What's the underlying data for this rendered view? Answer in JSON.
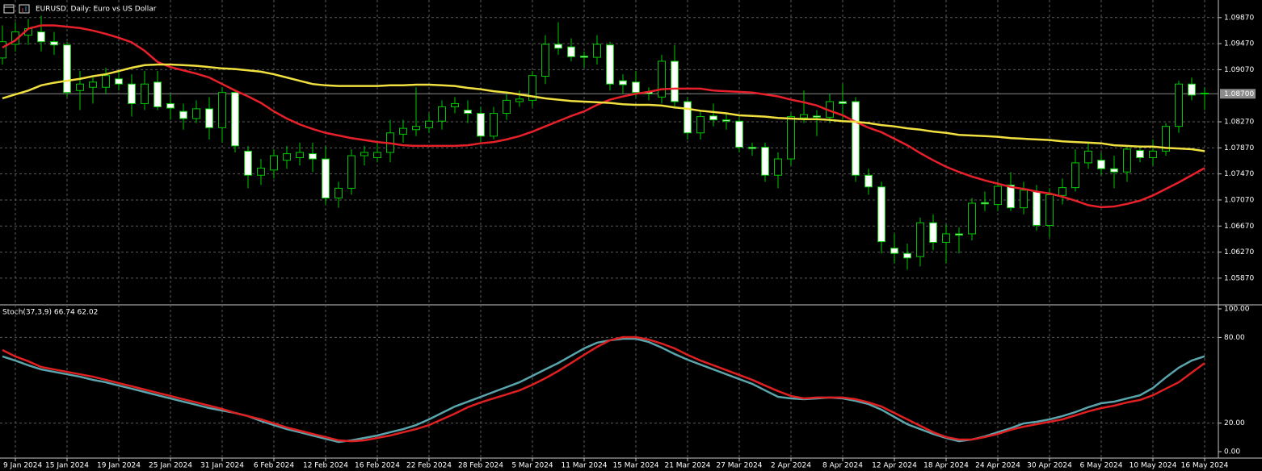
{
  "chart_data": [
    {
      "type": "candlestick",
      "title": "EURUSD, Daily:  Euro vs US Dollar",
      "categories": [
        null,
        "9 Jan 2024",
        null,
        null,
        null,
        "15 Jan 2024",
        null,
        null,
        null,
        "19 Jan 2024",
        null,
        null,
        null,
        "25 Jan 2024",
        null,
        null,
        null,
        "31 Jan 2024",
        null,
        null,
        null,
        "6 Feb 2024",
        null,
        null,
        null,
        "12 Feb 2024",
        null,
        null,
        null,
        "16 Feb 2024",
        null,
        null,
        null,
        "22 Feb 2024",
        null,
        null,
        null,
        "28 Feb 2024",
        null,
        null,
        null,
        "5 Mar 2024",
        null,
        null,
        null,
        "11 Mar 2024",
        null,
        null,
        null,
        "15 Mar 2024",
        null,
        null,
        null,
        "21 Mar 2024",
        null,
        null,
        null,
        "27 Mar 2024",
        null,
        null,
        null,
        "2 Apr 2024",
        null,
        null,
        null,
        "8 Apr 2024",
        null,
        null,
        null,
        "12 Apr 2024",
        null,
        null,
        null,
        "18 Apr 2024",
        null,
        null,
        null,
        "24 Apr 2024",
        null,
        null,
        null,
        "30 Apr 2024",
        null,
        null,
        null,
        "6 May 2024",
        null,
        null,
        null,
        "10 May 2024",
        null,
        null,
        null,
        "16 May 2024"
      ],
      "open": [
        1.0925,
        1.0946,
        1.096,
        1.0965,
        1.095,
        1.0945,
        1.0875,
        1.088,
        1.088,
        1.0893,
        1.0885,
        1.0855,
        1.0888,
        1.0855,
        1.0843,
        1.0832,
        1.0847,
        1.0818,
        1.0872,
        1.0782,
        1.0745,
        1.0753,
        1.0768,
        1.0772,
        1.0778,
        1.077,
        1.071,
        1.0725,
        1.0775,
        1.0772,
        1.078,
        1.0808,
        1.0815,
        1.0818,
        1.0828,
        1.085,
        1.0845,
        1.084,
        1.0805,
        1.084,
        1.0858,
        1.086,
        1.0897,
        1.0946,
        1.0942,
        1.0928,
        1.0926,
        1.0945,
        1.089,
        1.0888,
        1.0873,
        1.0865,
        1.092,
        1.0858,
        1.081,
        1.0836,
        1.083,
        1.0828,
        1.0788,
        1.0788,
        1.0745,
        1.077,
        1.0833,
        1.0836,
        1.0834,
        1.0858,
        1.0858,
        1.0745,
        1.0727,
        1.0633,
        1.0625,
        1.062,
        1.0672,
        1.0642,
        1.0655,
        1.0655,
        1.0703,
        1.07,
        1.073,
        1.0695,
        1.072,
        1.0668,
        1.0714,
        1.0726,
        1.0764,
        1.0768,
        1.0755,
        1.075,
        1.0783,
        1.0772,
        1.0782,
        1.082,
        1.0885,
        1.0871
      ],
      "high": [
        1.0975,
        1.098,
        1.0985,
        1.099,
        1.0965,
        1.095,
        1.0905,
        1.0895,
        1.091,
        1.0905,
        1.09,
        1.0905,
        1.0905,
        1.087,
        1.0855,
        1.086,
        1.0865,
        1.088,
        1.0875,
        1.079,
        1.077,
        1.0785,
        1.079,
        1.0795,
        1.0795,
        1.079,
        1.0735,
        1.0785,
        1.079,
        1.0795,
        1.083,
        1.083,
        1.088,
        1.084,
        1.086,
        1.0865,
        1.086,
        1.085,
        1.085,
        1.087,
        1.0875,
        1.0905,
        1.096,
        1.098,
        1.0955,
        1.0935,
        1.096,
        1.095,
        1.09,
        1.0905,
        1.088,
        1.093,
        1.0945,
        1.0865,
        1.0845,
        1.0855,
        1.084,
        1.0835,
        1.0795,
        1.0795,
        1.078,
        1.084,
        1.0875,
        1.0845,
        1.087,
        1.0885,
        1.0865,
        1.0755,
        1.0735,
        1.0655,
        1.064,
        1.068,
        1.0685,
        1.067,
        1.0665,
        1.071,
        1.072,
        1.0735,
        1.075,
        1.0735,
        1.073,
        1.0725,
        1.074,
        1.0785,
        1.0795,
        1.078,
        1.0775,
        1.079,
        1.079,
        1.08,
        1.0825,
        1.089,
        1.0895,
        1.088
      ],
      "low": [
        1.0915,
        1.0935,
        1.0945,
        1.0935,
        1.093,
        1.0865,
        1.0845,
        1.0855,
        1.087,
        1.0875,
        1.0835,
        1.0845,
        1.0845,
        1.083,
        1.0815,
        1.0825,
        1.08,
        1.0795,
        1.078,
        1.0725,
        1.073,
        1.074,
        1.0755,
        1.076,
        1.075,
        1.07,
        1.0695,
        1.0715,
        1.076,
        1.0765,
        1.0765,
        1.0795,
        1.0805,
        1.081,
        1.0815,
        1.084,
        1.0825,
        1.0795,
        1.08,
        1.083,
        1.085,
        1.085,
        1.0885,
        1.093,
        1.092,
        1.091,
        1.0915,
        1.0875,
        1.087,
        1.0865,
        1.086,
        1.0855,
        1.085,
        1.08,
        1.08,
        1.082,
        1.0815,
        1.078,
        1.0775,
        1.0735,
        1.0725,
        1.076,
        1.0825,
        1.0805,
        1.0825,
        1.083,
        1.0735,
        1.0715,
        1.0625,
        1.061,
        1.06,
        1.0605,
        1.063,
        1.061,
        1.0625,
        1.0645,
        1.069,
        1.069,
        1.069,
        1.0685,
        1.066,
        1.065,
        1.07,
        1.072,
        1.0755,
        1.0745,
        1.0725,
        1.0735,
        1.0765,
        1.076,
        1.0775,
        1.081,
        1.086,
        1.0845
      ],
      "close": [
        1.095,
        1.0965,
        1.097,
        1.095,
        1.0945,
        1.0872,
        1.0885,
        1.0888,
        1.0898,
        1.0885,
        1.0855,
        1.0885,
        1.085,
        1.0848,
        1.0832,
        1.0847,
        1.0818,
        1.0872,
        1.079,
        1.0745,
        1.0756,
        1.0775,
        1.0778,
        1.078,
        1.077,
        1.071,
        1.0725,
        1.0775,
        1.078,
        1.078,
        1.081,
        1.0817,
        1.082,
        1.0828,
        1.085,
        1.0855,
        1.084,
        1.0805,
        1.084,
        1.086,
        1.0862,
        1.0898,
        1.0946,
        1.094,
        1.0927,
        1.0926,
        1.0946,
        1.0885,
        1.0884,
        1.0872,
        1.087,
        1.092,
        1.0858,
        1.081,
        1.0835,
        1.083,
        1.0828,
        1.0788,
        1.0786,
        1.0745,
        1.077,
        1.0835,
        1.0838,
        1.0834,
        1.0858,
        1.0855,
        1.0745,
        1.0727,
        1.0643,
        1.0625,
        1.0618,
        1.0672,
        1.0642,
        1.0655,
        1.0653,
        1.0702,
        1.0701,
        1.0728,
        1.0695,
        1.0722,
        1.0668,
        1.0715,
        1.0726,
        1.0764,
        1.0782,
        1.0755,
        1.075,
        1.0785,
        1.0772,
        1.0782,
        1.082,
        1.0885,
        1.0868,
        1.087
      ],
      "up_color": "#00c800",
      "down_color": "#ffffff",
      "lines": [
        {
          "color": "#e8202a",
          "values": [
            1.0941,
            1.0952,
            1.097,
            1.0975,
            1.0975,
            1.0973,
            1.0971,
            1.0967,
            1.0962,
            1.0956,
            1.0949,
            1.0936,
            1.0919,
            1.0911,
            1.0906,
            1.0901,
            1.0895,
            1.0885,
            1.0875,
            1.0866,
            1.0856,
            1.0843,
            1.0832,
            1.0823,
            1.0816,
            1.081,
            1.0806,
            1.0802,
            1.0799,
            1.0796,
            1.0794,
            1.0791,
            1.079,
            1.079,
            1.079,
            1.079,
            1.0791,
            1.0794,
            1.0796,
            1.08,
            1.0805,
            1.0812,
            1.082,
            1.0828,
            1.0836,
            1.0843,
            1.0853,
            1.0861,
            1.0866,
            1.087,
            1.0873,
            1.0877,
            1.0878,
            1.0878,
            1.0878,
            1.0875,
            1.0874,
            1.0873,
            1.0872,
            1.0869,
            1.0866,
            1.0861,
            1.0857,
            1.0852,
            1.0844,
            1.0837,
            1.0827,
            1.0818,
            1.0811,
            1.0801,
            1.0791,
            1.0779,
            1.0768,
            1.0758,
            1.075,
            1.0743,
            1.0737,
            1.0732,
            1.0727,
            1.0724,
            1.072,
            1.0717,
            1.0712,
            1.0706,
            1.0699,
            1.0696,
            1.0697,
            1.0701,
            1.0706,
            1.0714,
            1.0724,
            1.0734,
            1.0745,
            1.0756
          ]
        },
        {
          "color": "#f0e040",
          "values": [
            1.0863,
            1.0869,
            1.0875,
            1.0883,
            1.0887,
            1.089,
            1.0893,
            1.0897,
            1.09,
            1.0905,
            1.091,
            1.0914,
            1.0915,
            1.0915,
            1.0914,
            1.0913,
            1.0911,
            1.0909,
            1.0908,
            1.0906,
            1.0904,
            1.09,
            1.0895,
            1.089,
            1.0885,
            1.0883,
            1.0882,
            1.0882,
            1.0882,
            1.0882,
            1.0883,
            1.0883,
            1.0884,
            1.0884,
            1.0883,
            1.0882,
            1.0879,
            1.0877,
            1.0874,
            1.0872,
            1.0869,
            1.0866,
            1.0863,
            1.0861,
            1.0859,
            1.0858,
            1.0857,
            1.0856,
            1.0854,
            1.0853,
            1.0853,
            1.0852,
            1.0849,
            1.0847,
            1.0844,
            1.0842,
            1.084,
            1.0837,
            1.0836,
            1.0835,
            1.0833,
            1.0832,
            1.0831,
            1.0831,
            1.083,
            1.0828,
            1.0827,
            1.0825,
            1.0822,
            1.082,
            1.0817,
            1.0815,
            1.0812,
            1.081,
            1.0807,
            1.0806,
            1.0805,
            1.0804,
            1.0802,
            1.0801,
            1.08,
            1.0799,
            1.0797,
            1.0796,
            1.0795,
            1.0794,
            1.0791,
            1.079,
            1.0789,
            1.0789,
            1.0787,
            1.0786,
            1.0785,
            1.0782
          ]
        }
      ],
      "price_label": {
        "value": 1.087,
        "label": "1.08700"
      },
      "ylim": [
        1.0546,
        1.1014
      ],
      "yticks": [
        {
          "value": 1.0987,
          "label": "1.09870"
        },
        {
          "value": 1.0947,
          "label": "1.09470"
        },
        {
          "value": 1.0907,
          "label": "1.09070"
        },
        {
          "value": 1.0827,
          "label": "1.08270"
        },
        {
          "value": 1.0787,
          "label": "1.07870"
        },
        {
          "value": 1.0747,
          "label": "1.07470"
        },
        {
          "value": 1.0707,
          "label": "1.07070"
        },
        {
          "value": 1.0667,
          "label": "1.06670"
        },
        {
          "value": 1.0627,
          "label": "1.06270"
        },
        {
          "value": 1.0587,
          "label": "1.05870"
        }
      ],
      "grid": true
    },
    {
      "type": "line",
      "title": "Stoch(37,3,9) 66.74 62.02",
      "series": [
        {
          "color": "#5aa4ac",
          "values": [
            66.7,
            63.8,
            60.5,
            57.6,
            55.9,
            54.2,
            52.5,
            50.3,
            48.6,
            46.3,
            44.1,
            41.8,
            39.5,
            37.3,
            35.0,
            32.8,
            30.5,
            28.8,
            27.1,
            24.9,
            21.5,
            18.6,
            15.8,
            13.6,
            11.3,
            9.0,
            6.8,
            7.9,
            9.6,
            11.3,
            13.6,
            15.8,
            18.6,
            22.6,
            27.1,
            31.6,
            35.0,
            38.4,
            41.8,
            45.2,
            48.6,
            53.1,
            57.6,
            62.1,
            67.2,
            72.3,
            76.3,
            78.0,
            79.1,
            79.1,
            76.8,
            72.9,
            68.4,
            64.4,
            61.0,
            57.6,
            54.2,
            50.8,
            47.5,
            42.9,
            38.4,
            37.3,
            36.7,
            37.3,
            37.9,
            37.3,
            35.6,
            33.3,
            29.4,
            24.3,
            19.2,
            15.8,
            12.4,
            9.6,
            7.3,
            8.5,
            10.7,
            13.6,
            16.4,
            19.8,
            20.9,
            22.6,
            24.9,
            27.7,
            31.1,
            33.9,
            35.0,
            37.3,
            39.5,
            44.6,
            52.0,
            58.8,
            63.8,
            66.74
          ]
        },
        {
          "color": "#e02020",
          "values": [
            71.2,
            66.7,
            63.3,
            59.3,
            57.6,
            55.9,
            54.2,
            52.5,
            50.3,
            48.0,
            45.8,
            43.5,
            41.2,
            39.0,
            36.7,
            34.5,
            32.2,
            29.9,
            27.1,
            24.9,
            22.6,
            19.8,
            16.9,
            14.7,
            12.4,
            10.2,
            7.9,
            7.3,
            7.9,
            9.6,
            11.3,
            13.6,
            15.8,
            18.6,
            22.6,
            26.6,
            31.1,
            34.5,
            37.3,
            40.1,
            42.9,
            46.9,
            51.4,
            56.5,
            62.1,
            67.8,
            73.4,
            78.0,
            80.2,
            80.2,
            78.5,
            75.7,
            72.3,
            67.8,
            63.8,
            60.5,
            57.1,
            53.7,
            50.3,
            46.3,
            42.4,
            39.0,
            37.3,
            37.9,
            37.9,
            37.9,
            36.7,
            34.5,
            31.6,
            27.1,
            22.6,
            18.1,
            13.6,
            10.2,
            8.5,
            8.5,
            10.2,
            12.4,
            15.3,
            17.5,
            19.2,
            20.9,
            22.6,
            25.4,
            28.2,
            30.5,
            32.2,
            34.5,
            36.2,
            39.5,
            44.1,
            48.6,
            55.4,
            62.02
          ]
        }
      ],
      "ylim": [
        0,
        100
      ],
      "yticks": [
        {
          "value": 100,
          "label": "100.00"
        },
        {
          "value": 80,
          "label": "80.00"
        },
        {
          "value": 20,
          "label": "20.00"
        },
        {
          "value": 0,
          "label": "0.00"
        }
      ],
      "grid": true
    }
  ]
}
